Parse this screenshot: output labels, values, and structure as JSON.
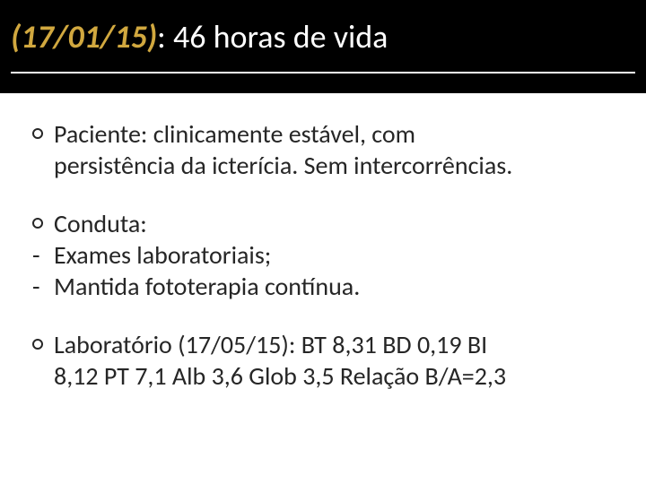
{
  "title": {
    "date_part": "(17/01/15)",
    "colon": ":",
    "rest": " 46 horas de vida",
    "date_color": "#d1a83f",
    "rest_color": "#ffffff",
    "bg_color": "#000000",
    "underline_color": "#ffffff",
    "fontsize_pt": 36
  },
  "body": {
    "text_color": "#262626",
    "fontsize_pt": 28,
    "bg_color": "#ffffff"
  },
  "blocks": [
    {
      "type": "bullet",
      "lead": "Paciente:",
      "text": " clinicamente estável, com",
      "cont": "persistência da icterícia. Sem intercorrências."
    },
    {
      "type": "bullet_with_dashes",
      "lead": "Conduta:",
      "dashes": [
        "Exames laboratoriais;",
        "Mantida fototerapia contínua."
      ]
    },
    {
      "type": "bullet_lab",
      "lead": "Laboratório (17/05/15):",
      "labs_line1": [
        {
          "label": " BT ",
          "val": "8,31"
        },
        {
          "label": "  BD ",
          "val": "0,19"
        },
        {
          "label": "  BI",
          "val": ""
        }
      ],
      "labs_line2": [
        {
          "label": "",
          "val": "8,12"
        },
        {
          "label": " PT ",
          "val": "7,1"
        },
        {
          "label": "  Alb ",
          "val": "3,6"
        },
        {
          "label": " Glob ",
          "val": "3,5"
        },
        {
          "label": " Relação B/A=",
          "val": "2,3"
        }
      ]
    }
  ]
}
